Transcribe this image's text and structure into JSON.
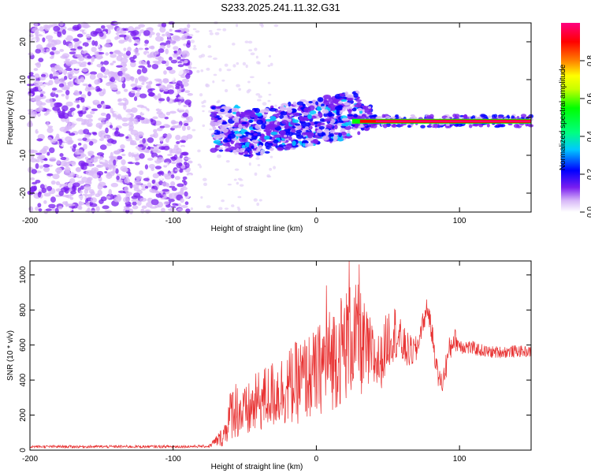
{
  "figure_title": "S233.2025.241.11.32.G31",
  "chart_data": [
    {
      "type": "heatmap",
      "title": "S233.2025.241.11.32.G31",
      "xlabel": "Height of straight line (km)",
      "ylabel": "Frequency (Hz)",
      "xlim": [
        -200,
        150
      ],
      "ylim": [
        -25,
        25
      ],
      "xticks": [
        -200,
        -100,
        0,
        100
      ],
      "yticks": [
        -20,
        -10,
        0,
        10,
        20
      ],
      "colorbar": {
        "label": "Normalized spectral amplitude",
        "range": [
          0.0,
          1.0
        ],
        "ticks": [
          0.0,
          0.2,
          0.4,
          0.6,
          0.8
        ],
        "colormap": [
          "#ffffff",
          "#c8a0f0",
          "#7a1ef0",
          "#0000ff",
          "#00ffff",
          "#00ff00",
          "#ffff00",
          "#ff8000",
          "#ff0000",
          "#ff0080"
        ]
      },
      "dominant_line": {
        "frequency_hz": -1,
        "from_height_km": 25,
        "to_height_km": 150,
        "normalized_amplitude": 1.0
      },
      "description_regions": [
        {
          "from_km": -200,
          "to_km": -88,
          "level": "diffuse",
          "max_amplitude": 0.2
        },
        {
          "from_km": -68,
          "to_km": 30,
          "level": "moderate",
          "max_amplitude": 0.4
        },
        {
          "from_km": 30,
          "to_km": 150,
          "level": "strong",
          "max_amplitude": 1.0
        }
      ]
    },
    {
      "type": "line",
      "xlabel": "Height of straight line (km)",
      "ylabel": "SNR (10 * v/v)",
      "xlim": [
        -200,
        150
      ],
      "ylim": [
        0,
        1080
      ],
      "xticks": [
        -200,
        -100,
        0,
        100
      ],
      "yticks": [
        0,
        200,
        400,
        600,
        800,
        1000
      ],
      "series": [
        {
          "name": "SNR",
          "color": "#e83030",
          "x": [
            -200,
            -150,
            -100,
            -75,
            -65,
            -58,
            -50,
            -40,
            -30,
            -20,
            -10,
            -5,
            0,
            5,
            10,
            15,
            20,
            25,
            30,
            35,
            40,
            45,
            50,
            55,
            60,
            65,
            70,
            74,
            78,
            82,
            85,
            88,
            92,
            96,
            100,
            110,
            120,
            130,
            140,
            150
          ],
          "values": [
            20,
            20,
            20,
            22,
            80,
            250,
            200,
            280,
            320,
            360,
            400,
            420,
            430,
            500,
            520,
            560,
            600,
            640,
            620,
            560,
            520,
            500,
            640,
            680,
            600,
            560,
            570,
            720,
            800,
            600,
            420,
            380,
            540,
            640,
            600,
            580,
            560,
            560,
            565,
            560
          ],
          "spread": [
            8,
            8,
            8,
            8,
            60,
            180,
            160,
            180,
            200,
            220,
            250,
            250,
            260,
            280,
            300,
            320,
            330,
            330,
            320,
            250,
            200,
            160,
            180,
            160,
            120,
            100,
            80,
            60,
            50,
            80,
            60,
            60,
            90,
            70,
            50,
            40,
            35,
            35,
            35,
            30
          ],
          "peaks": [
            {
              "x": 7,
              "value": 940
            },
            {
              "x": 23,
              "value": 1080
            },
            {
              "x": 30,
              "value": 1060
            },
            {
              "x": 77,
              "value": 860
            }
          ]
        }
      ]
    }
  ]
}
